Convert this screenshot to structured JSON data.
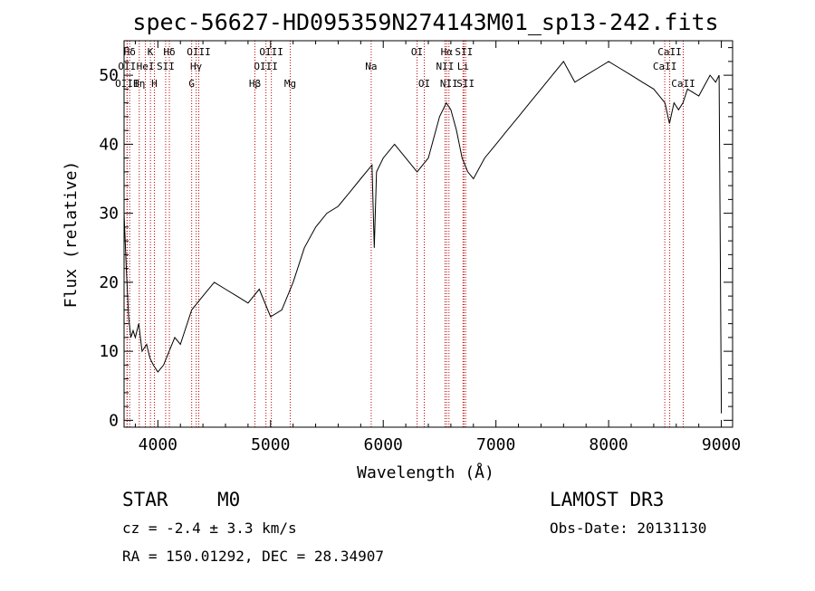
{
  "chart_data": {
    "type": "line",
    "title": "spec-56627-HD095359N274143M01_sp13-242.fits",
    "xlabel": "Wavelength (Å)",
    "ylabel": "Flux (relative)",
    "xlim": [
      3700,
      9100
    ],
    "ylim": [
      -1,
      55
    ],
    "xticks": [
      4000,
      5000,
      6000,
      7000,
      8000,
      9000
    ],
    "yticks": [
      0,
      10,
      20,
      30,
      40,
      50
    ],
    "grid": false,
    "series": [
      {
        "x": [
          3700,
          3720,
          3740,
          3760,
          3780,
          3800,
          3830,
          3860,
          3900,
          3930,
          3960,
          4000,
          4050,
          4100,
          4150,
          4200,
          4300,
          4400,
          4500,
          4600,
          4700,
          4800,
          4900,
          5000,
          5100,
          5200,
          5300,
          5400,
          5500,
          5600,
          5700,
          5800,
          5900,
          5920,
          5940,
          6000,
          6100,
          6200,
          6300,
          6400,
          6500,
          6560,
          6600,
          6650,
          6700,
          6750,
          6800,
          6900,
          7000,
          7100,
          7200,
          7300,
          7400,
          7500,
          7600,
          7700,
          7800,
          7900,
          8000,
          8100,
          8200,
          8300,
          8400,
          8500,
          8540,
          8580,
          8620,
          8660,
          8700,
          8800,
          8900,
          8950,
          8980,
          9000
        ],
        "y": [
          30,
          22,
          15,
          12,
          13,
          12,
          14,
          10,
          11,
          9,
          8,
          7,
          8,
          10,
          12,
          11,
          16,
          18,
          20,
          19,
          18,
          17,
          19,
          15,
          16,
          20,
          25,
          28,
          30,
          31,
          33,
          35,
          37,
          25,
          36,
          38,
          40,
          38,
          36,
          38,
          44,
          46,
          45,
          42,
          38,
          36,
          35,
          38,
          40,
          42,
          44,
          46,
          48,
          50,
          52,
          49,
          50,
          51,
          52,
          51,
          50,
          49,
          48,
          46,
          43,
          46,
          45,
          46,
          48,
          47,
          50,
          49,
          50,
          1
        ]
      }
    ],
    "line_markers": [
      {
        "label": "Hδ",
        "x": 3750,
        "row": 1
      },
      {
        "label": "OII",
        "x": 3727,
        "row": 2
      },
      {
        "label": "OIII",
        "x": 3727,
        "row": 3
      },
      {
        "label": "K",
        "x": 3934,
        "row": 1
      },
      {
        "label": "HeI",
        "x": 3889,
        "row": 2
      },
      {
        "label": "Hη",
        "x": 3835,
        "row": 3
      },
      {
        "label": "SII",
        "x": 4069,
        "row": 2
      },
      {
        "label": "H",
        "x": 3969,
        "row": 3
      },
      {
        "label": "Hδ",
        "x": 4102,
        "row": 1
      },
      {
        "label": "OIII",
        "x": 4363,
        "row": 1
      },
      {
        "label": "Hγ",
        "x": 4340,
        "row": 2
      },
      {
        "label": "G",
        "x": 4300,
        "row": 3
      },
      {
        "label": "OIII",
        "x": 5007,
        "row": 1
      },
      {
        "label": "OIII",
        "x": 4959,
        "row": 2
      },
      {
        "label": "Hβ",
        "x": 4861,
        "row": 3
      },
      {
        "label": "Mg",
        "x": 5175,
        "row": 3
      },
      {
        "label": "Na",
        "x": 5893,
        "row": 2
      },
      {
        "label": "OI",
        "x": 6300,
        "row": 1
      },
      {
        "label": "OI",
        "x": 6364,
        "row": 3
      },
      {
        "label": "Hα",
        "x": 6563,
        "row": 1
      },
      {
        "label": "SII",
        "x": 6716,
        "row": 1
      },
      {
        "label": "NII",
        "x": 6548,
        "row": 2
      },
      {
        "label": "Li",
        "x": 6708,
        "row": 2
      },
      {
        "label": "NII",
        "x": 6583,
        "row": 3
      },
      {
        "label": "SII",
        "x": 6731,
        "row": 3
      },
      {
        "label": "CaII",
        "x": 8542,
        "row": 1
      },
      {
        "label": "CaII",
        "x": 8498,
        "row": 2
      },
      {
        "label": "CaII",
        "x": 8662,
        "row": 3
      }
    ],
    "marker_color": "#c00000"
  },
  "info": {
    "class": "STAR",
    "subclass": "M0",
    "survey": "LAMOST DR3",
    "cz": "cz = -2.4 ± 3.3 km/s",
    "obs_date": "Obs-Date: 20131130",
    "coords": "RA = 150.01292, DEC =  28.34907"
  }
}
